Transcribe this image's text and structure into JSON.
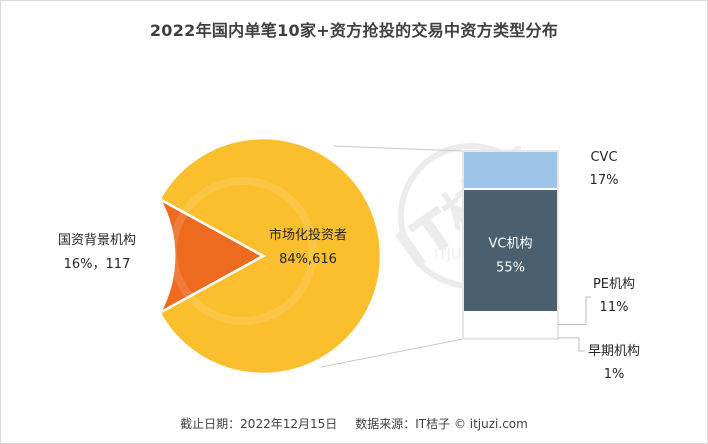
{
  "chart_data": [
    {
      "type": "pie",
      "title": "2022年国内单笔10家+资方抢投的交易中资方类型分布",
      "slices": [
        {
          "name": "市场化投资者",
          "percent": 84,
          "count": 616,
          "label": "84%,616",
          "color": "#FBBE2D"
        },
        {
          "name": "国资背景机构",
          "percent": 16,
          "count": 117,
          "label": "16%，117",
          "color": "#EE6A1F"
        }
      ]
    },
    {
      "type": "bar",
      "stacked": true,
      "breakdown_of": "市场化投资者",
      "segments": [
        {
          "name": "CVC",
          "percent": 17,
          "label": "17%",
          "color": "#9DC3E6"
        },
        {
          "name": "VC机构",
          "percent": 55,
          "label": "55%",
          "color": "#4A606E"
        },
        {
          "name": "PE机构",
          "percent": 11,
          "label": "11%",
          "color": "#FFFFFF"
        },
        {
          "name": "早期机构",
          "percent": 1,
          "label": "1%",
          "color": "#D0D0D0"
        }
      ]
    }
  ],
  "footer": {
    "date_text": "截止日期：2022年12月15日",
    "source_text": "数据来源：IT桔子 © itjuzi.com"
  },
  "watermark": {
    "text": "IT桔子",
    "url_text": "ITJUZI.COM"
  }
}
